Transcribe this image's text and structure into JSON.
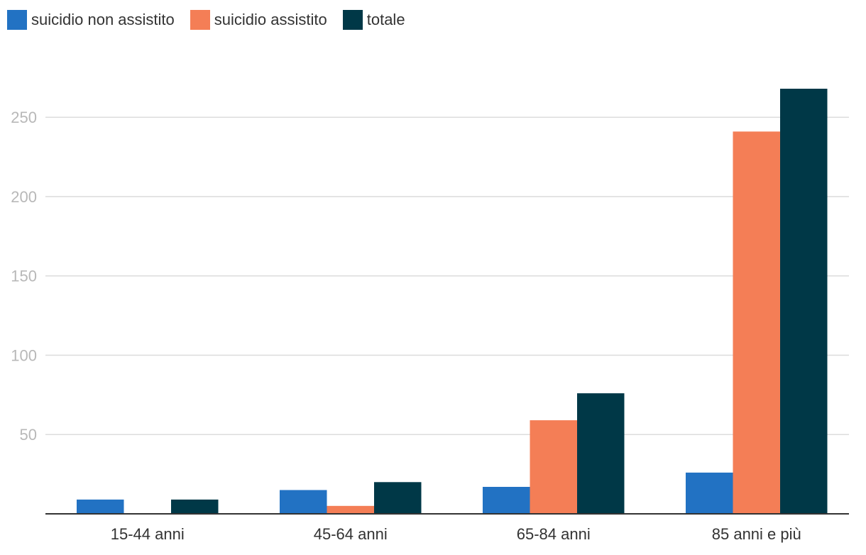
{
  "chart_data": {
    "type": "bar",
    "categories": [
      "15-44 anni",
      "45-64 anni",
      "65-84 anni",
      "85 anni e più"
    ],
    "series": [
      {
        "name": "suicidio non assistito",
        "color": "#2272c3",
        "values": [
          9,
          15,
          17,
          26
        ]
      },
      {
        "name": "suicidio assistito",
        "color": "#f47e56",
        "values": [
          0,
          5,
          59,
          241
        ]
      },
      {
        "name": "totale",
        "color": "#003847",
        "values": [
          9,
          20,
          76,
          268
        ]
      }
    ],
    "y_ticks": [
      "50",
      "100",
      "150",
      "200",
      "250"
    ],
    "ylim": [
      0,
      268
    ],
    "grid": true,
    "legend_position": "top-left"
  }
}
